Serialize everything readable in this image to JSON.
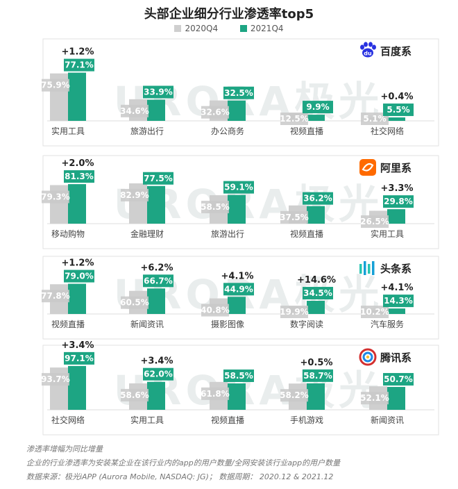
{
  "title": "头部企业细分行业渗透率top5",
  "watermark": "URORA极光",
  "legend": [
    {
      "name": "2020Q4",
      "color": "#cfcfcf"
    },
    {
      "name": "2021Q4",
      "color": "#1da583"
    }
  ],
  "colors": {
    "prev": "#cfcfcf",
    "curr": "#1da583",
    "prev_label_bg": "#c9c9c9",
    "curr_label_bg": "#1da583",
    "panel_border": "#e2e2e2"
  },
  "chart_data": [
    {
      "type": "bar",
      "group": "百度系",
      "logo_icon": "baidu-paw-icon",
      "ylim": [
        0,
        100
      ],
      "categories": [
        "实用工具",
        "旅游出行",
        "办公商务",
        "视频直播",
        "社交网络"
      ],
      "series": [
        {
          "name": "2020Q4",
          "values": [
            75.9,
            34.6,
            32.6,
            12.5,
            5.1
          ],
          "labels": [
            "75.9%",
            "34.6%",
            "32.6%",
            "12.5%",
            "5.1%"
          ]
        },
        {
          "name": "2021Q4",
          "values": [
            77.1,
            33.9,
            32.5,
            9.9,
            5.5
          ],
          "labels": [
            "77.1%",
            "33.9%",
            "32.5%",
            "9.9%",
            "5.5%"
          ]
        }
      ],
      "changes": [
        "+1.2%",
        "",
        "",
        "",
        "+0.4%"
      ]
    },
    {
      "type": "bar",
      "group": "阿里系",
      "logo_icon": "alibaba-logo-icon",
      "ylim": [
        0,
        100
      ],
      "categories": [
        "移动购物",
        "金融理财",
        "旅游出行",
        "视频直播",
        "实用工具"
      ],
      "series": [
        {
          "name": "2020Q4",
          "values": [
            79.3,
            82.9,
            58.5,
            37.5,
            26.5
          ],
          "labels": [
            "79.3%",
            "82.9%",
            "58.5%",
            "37.5%",
            "26.5%"
          ]
        },
        {
          "name": "2021Q4",
          "values": [
            81.3,
            77.5,
            59.1,
            36.2,
            29.8
          ],
          "labels": [
            "81.3%",
            "77.5%",
            "59.1%",
            "36.2%",
            "29.8%"
          ]
        }
      ],
      "changes": [
        "+2.0%",
        "",
        "",
        "",
        "+3.3%"
      ]
    },
    {
      "type": "bar",
      "group": "头条系",
      "logo_icon": "toutiao-logo-icon",
      "ylim": [
        0,
        100
      ],
      "categories": [
        "视频直播",
        "新闻资讯",
        "摄影图像",
        "数字阅读",
        "汽车服务"
      ],
      "series": [
        {
          "name": "2020Q4",
          "values": [
            77.8,
            60.5,
            40.8,
            19.9,
            10.2
          ],
          "labels": [
            "77.8%",
            "60.5%",
            "40.8%",
            "19.9%",
            "10.2%"
          ]
        },
        {
          "name": "2021Q4",
          "values": [
            79.0,
            66.7,
            44.9,
            34.5,
            14.3
          ],
          "labels": [
            "79.0%",
            "66.7%",
            "44.9%",
            "34.5%",
            "14.3%"
          ]
        }
      ],
      "changes": [
        "+1.2%",
        "+6.2%",
        "+4.1%",
        "+14.6%",
        "+4.1%"
      ]
    },
    {
      "type": "bar",
      "group": "腾讯系",
      "logo_icon": "tencent-logo-icon",
      "ylim": [
        0,
        100
      ],
      "categories": [
        "社交网络",
        "实用工具",
        "视频直播",
        "手机游戏",
        "新闻资讯"
      ],
      "series": [
        {
          "name": "2020Q4",
          "values": [
            93.7,
            58.6,
            61.8,
            58.2,
            52.1
          ],
          "labels": [
            "93.7%",
            "58.6%",
            "61.8%",
            "58.2%",
            "52.1%"
          ]
        },
        {
          "name": "2021Q4",
          "values": [
            97.1,
            62.0,
            58.5,
            58.7,
            50.7
          ],
          "labels": [
            "97.1%",
            "62.0%",
            "58.5%",
            "58.7%",
            "50.7%"
          ]
        }
      ],
      "changes": [
        "+3.4%",
        "+3.4%",
        "",
        "+0.5%",
        ""
      ]
    }
  ],
  "notes": [
    "渗透率增幅为同比增量",
    "企业的行业渗透率为安装某企业在该行业内的app的用户数量/全网安装该行业app的用户数量",
    "数据来源：极光iAPP (Aurora Mobile, NASDAQ: JG)； 数据周期： 2020.12 & 2021.12"
  ]
}
